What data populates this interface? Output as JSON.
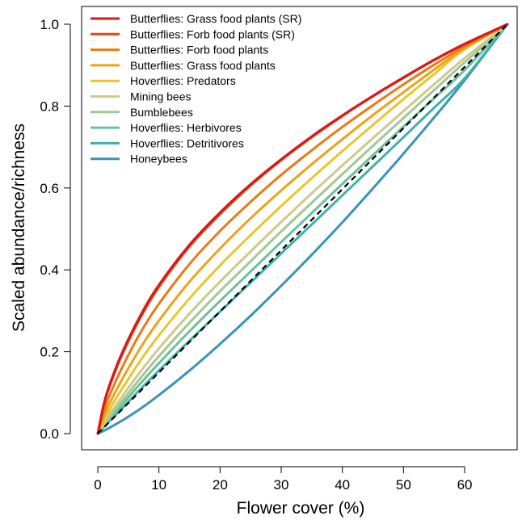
{
  "chart_data": {
    "type": "line",
    "title": "",
    "xlabel": "Flower cover (%)",
    "ylabel": "Scaled abundance/richness",
    "xlim": [
      0,
      67
    ],
    "ylim": [
      0,
      1.0
    ],
    "x_ticks": [
      "0",
      "10",
      "20",
      "30",
      "40",
      "50",
      "60"
    ],
    "y_ticks": [
      "0.0",
      "0.2",
      "0.4",
      "0.6",
      "0.8",
      "1.0"
    ],
    "grid": false,
    "legend_position": "top-left",
    "x": [
      0,
      1,
      2,
      4,
      7,
      10,
      15,
      20,
      25,
      30,
      35,
      40,
      45,
      50,
      55,
      60,
      67
    ],
    "series": [
      {
        "name": "Butterflies: Grass food plants (SR)",
        "color": "#d7191c",
        "values": [
          0.0,
          0.073,
          0.122,
          0.198,
          0.289,
          0.363,
          0.461,
          0.54,
          0.609,
          0.67,
          0.726,
          0.777,
          0.825,
          0.87,
          0.913,
          0.952,
          1.0
        ]
      },
      {
        "name": "Butterflies: Forb food plants (SR)",
        "color": "#e34a0f",
        "values": [
          0.0,
          0.07,
          0.118,
          0.193,
          0.284,
          0.358,
          0.457,
          0.536,
          0.606,
          0.668,
          0.724,
          0.776,
          0.824,
          0.869,
          0.912,
          0.951,
          1.0
        ]
      },
      {
        "name": "Butterflies: Forb food plants",
        "color": "#ec7a14",
        "values": [
          0.0,
          0.055,
          0.096,
          0.162,
          0.247,
          0.317,
          0.414,
          0.495,
          0.566,
          0.632,
          0.692,
          0.749,
          0.802,
          0.853,
          0.901,
          0.946,
          1.0
        ]
      },
      {
        "name": "Butterflies: Grass food plants",
        "color": "#eda317",
        "values": [
          0.0,
          0.042,
          0.076,
          0.133,
          0.21,
          0.276,
          0.371,
          0.452,
          0.526,
          0.594,
          0.658,
          0.719,
          0.778,
          0.834,
          0.889,
          0.942,
          1.0
        ]
      },
      {
        "name": "Hoverflies: Predators",
        "color": "#e9c62b",
        "values": [
          0.0,
          0.033,
          0.061,
          0.11,
          0.179,
          0.24,
          0.33,
          0.411,
          0.485,
          0.556,
          0.624,
          0.69,
          0.754,
          0.817,
          0.878,
          0.939,
          1.0
        ]
      },
      {
        "name": "Mining bees",
        "color": "#cfc98e",
        "values": [
          0.0,
          0.026,
          0.049,
          0.091,
          0.152,
          0.208,
          0.293,
          0.371,
          0.445,
          0.517,
          0.587,
          0.655,
          0.722,
          0.788,
          0.853,
          0.917,
          1.0
        ]
      },
      {
        "name": "Bumblebees",
        "color": "#9fc994",
        "values": [
          0.0,
          0.022,
          0.042,
          0.08,
          0.136,
          0.189,
          0.271,
          0.348,
          0.421,
          0.494,
          0.564,
          0.634,
          0.703,
          0.771,
          0.839,
          0.907,
          1.0
        ]
      },
      {
        "name": "Hoverflies: Herbivores",
        "color": "#6dbf9e",
        "values": [
          0.0,
          0.019,
          0.037,
          0.071,
          0.123,
          0.172,
          0.25,
          0.324,
          0.396,
          0.468,
          0.539,
          0.61,
          0.68,
          0.75,
          0.819,
          0.888,
          1.0
        ]
      },
      {
        "name": "Hoverflies: Detritivores",
        "color": "#3fb0ad",
        "values": [
          0.0,
          0.016,
          0.032,
          0.062,
          0.109,
          0.154,
          0.227,
          0.298,
          0.369,
          0.44,
          0.511,
          0.582,
          0.653,
          0.724,
          0.796,
          0.868,
          1.0
        ]
      },
      {
        "name": "Honeybees",
        "color": "#3a94b6",
        "values": [
          0.0,
          0.007,
          0.015,
          0.032,
          0.061,
          0.094,
          0.154,
          0.219,
          0.288,
          0.361,
          0.437,
          0.516,
          0.599,
          0.684,
          0.772,
          0.863,
          1.0
        ]
      }
    ],
    "reference_line": {
      "style": "dashed",
      "color": "#000000",
      "x": [
        0,
        67
      ],
      "values": [
        0.0,
        1.0
      ]
    }
  }
}
